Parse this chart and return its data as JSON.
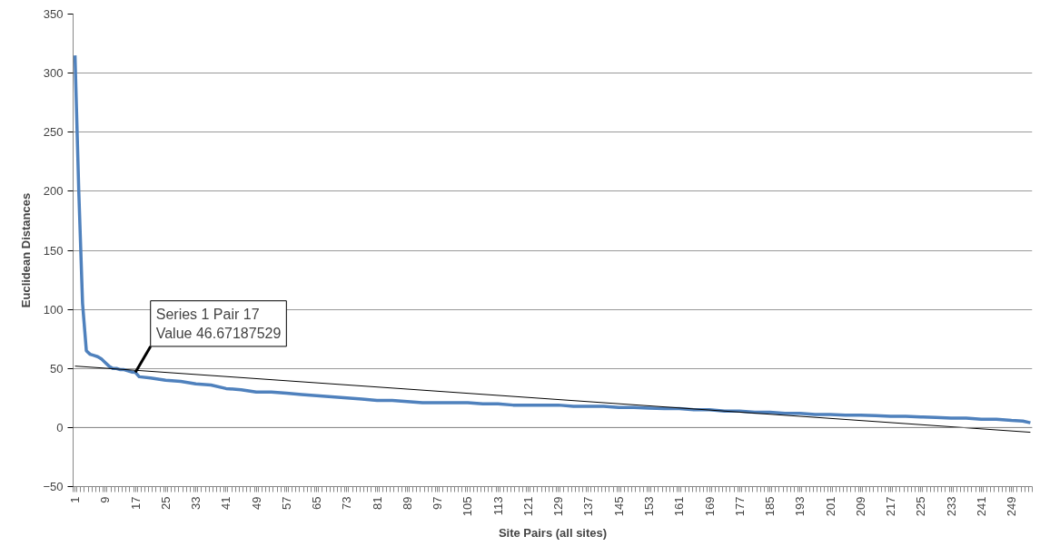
{
  "chart_data": {
    "type": "line",
    "xlabel": "Site Pairs (all sites)",
    "ylabel": "Euclidean Distances",
    "x": [
      1,
      2,
      3,
      4,
      5,
      6,
      7,
      8,
      9,
      10,
      11,
      12,
      13,
      14,
      15,
      16,
      17,
      18,
      21,
      25,
      29,
      33,
      37,
      41,
      45,
      49,
      53,
      57,
      61,
      65,
      69,
      73,
      77,
      81,
      85,
      89,
      93,
      97,
      101,
      105,
      109,
      113,
      117,
      121,
      125,
      129,
      133,
      137,
      141,
      145,
      149,
      153,
      157,
      161,
      165,
      169,
      173,
      177,
      181,
      185,
      189,
      193,
      197,
      201,
      205,
      209,
      213,
      217,
      221,
      225,
      229,
      233,
      237,
      241,
      245,
      249,
      252,
      254
    ],
    "series": [
      {
        "name": null,
        "color": "#4f81bd",
        "values": [
          315,
          200,
          105,
          65,
          62,
          61,
          60,
          58,
          55,
          52,
          50,
          50,
          49,
          49,
          48,
          47,
          46.67,
          43,
          42,
          40,
          39,
          37,
          36,
          33,
          32,
          30,
          30,
          29,
          28,
          27,
          26,
          25,
          24,
          23,
          23,
          22,
          21,
          21,
          21,
          21,
          20,
          20,
          19,
          19,
          19,
          19,
          18,
          18,
          18,
          17,
          17,
          16.5,
          16,
          16,
          15,
          15,
          14,
          14,
          13,
          13,
          12,
          12,
          11,
          11,
          10.5,
          10.5,
          10,
          9.5,
          9.5,
          9,
          8.5,
          8,
          8,
          7,
          7,
          6,
          5.5,
          4
        ]
      },
      {
        "name": null,
        "type": "line",
        "color": "#000000",
        "x": [
          1,
          254
        ],
        "values": [
          52,
          -4
        ]
      }
    ],
    "xlim": [
      0.5,
      254.5
    ],
    "xticks": [
      1,
      9,
      17,
      25,
      33,
      41,
      49,
      57,
      65,
      73,
      81,
      89,
      97,
      105,
      113,
      121,
      129,
      137,
      145,
      153,
      161,
      169,
      177,
      185,
      193,
      201,
      209,
      217,
      225,
      233,
      241,
      249
    ],
    "ylim": [
      -50,
      350
    ],
    "yticks": [
      -50,
      0,
      50,
      100,
      150,
      200,
      250,
      300,
      350
    ],
    "grid": "y",
    "marker": "none",
    "line_style": "solid",
    "annotations": [
      {
        "text": "Series 1 Pair 17\nValue 46.67187529",
        "x": 17,
        "y": 46.67
      }
    ]
  }
}
